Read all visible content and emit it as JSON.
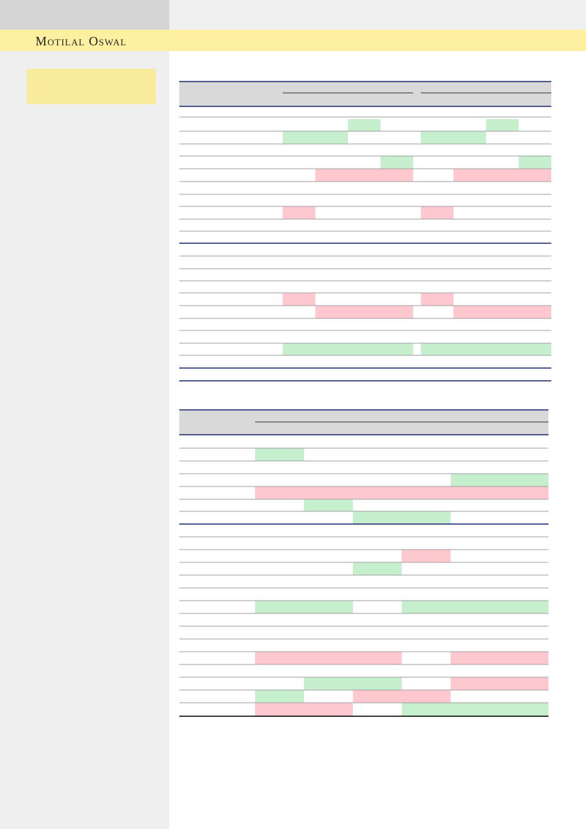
{
  "header": {
    "brand": "Motilal Oswal"
  }
}
